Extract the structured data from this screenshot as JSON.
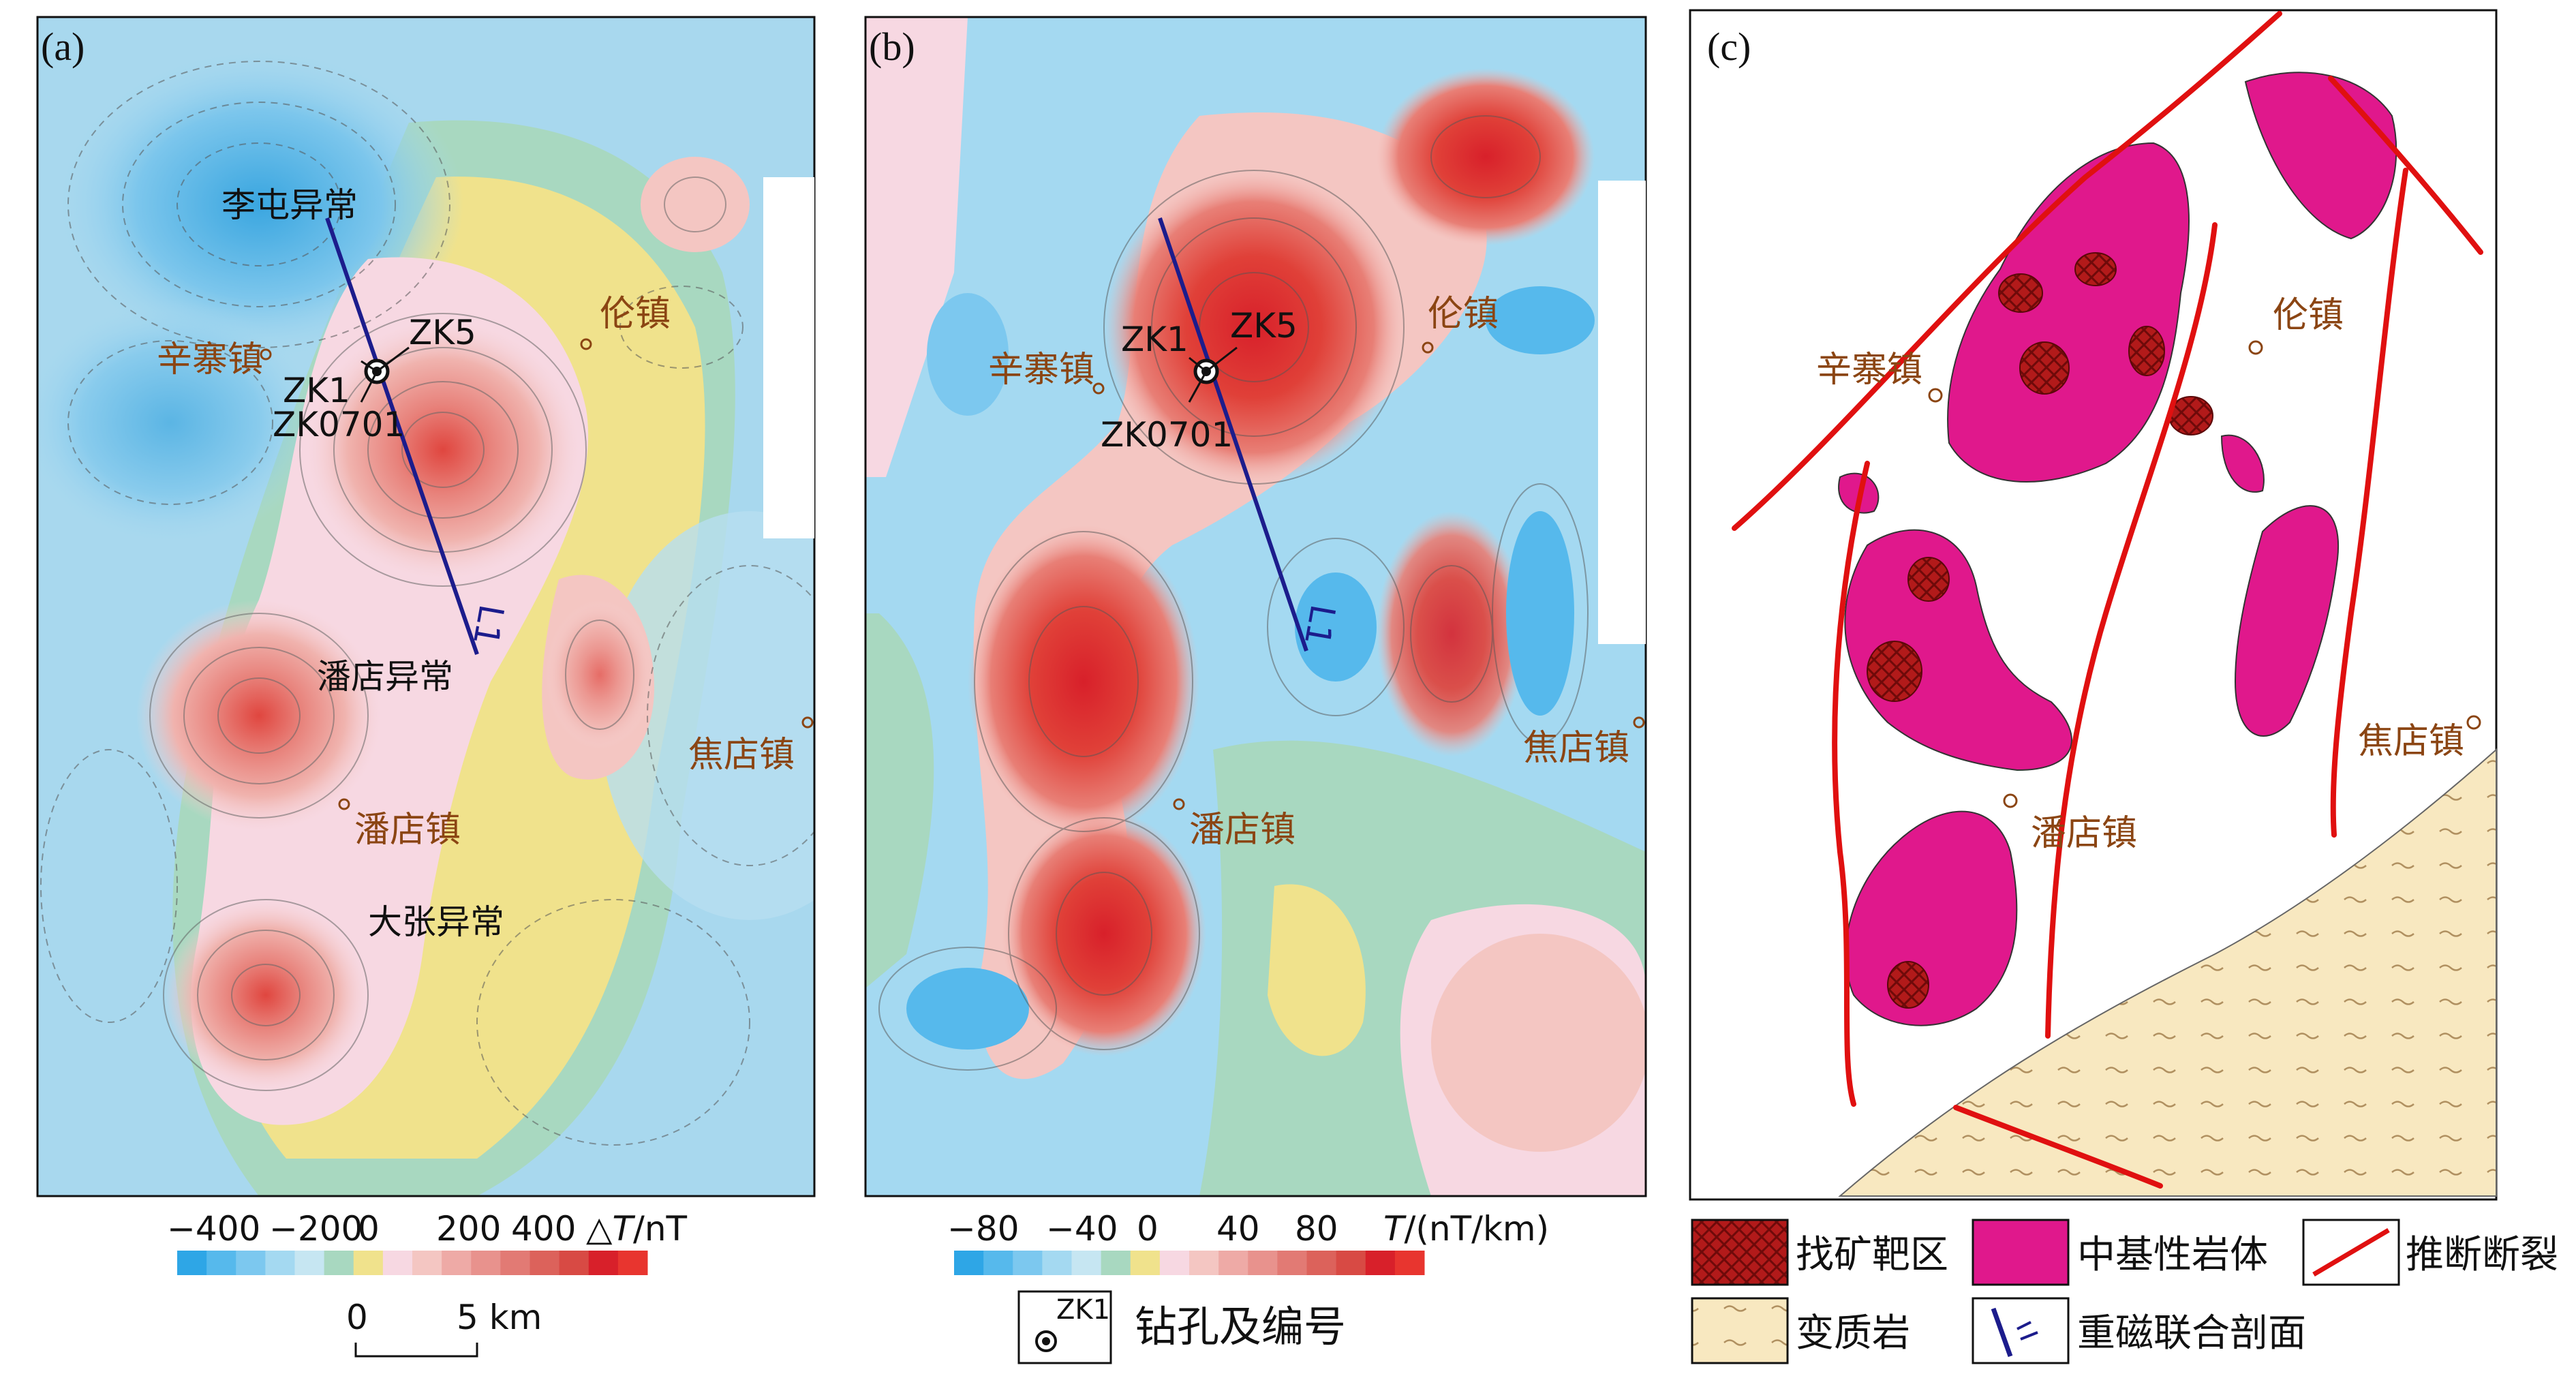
{
  "panels": {
    "a": {
      "label": "(a)",
      "labels": {
        "litun": "李屯异常",
        "xinzhai": "辛寨镇",
        "lunzhen": "伦镇",
        "pandian_anom": "潘店异常",
        "pandian": "潘店镇",
        "dazhang": "大张异常",
        "jiaodian": "焦店镇",
        "zk1": "ZK1",
        "zk5": "ZK5",
        "zk0701": "ZK0701",
        "line": "L1"
      },
      "colorbar": {
        "ticks": [
          "−400",
          "−200",
          "0",
          "200",
          "400"
        ],
        "unit_prefix": "△",
        "unit_var": "T",
        "unit_suffix": "/nT"
      },
      "scalebar": {
        "left": "0",
        "right": "5 km"
      }
    },
    "b": {
      "label": "(b)",
      "labels": {
        "xinzhai": "辛寨镇",
        "lunzhen": "伦镇",
        "pandian": "潘店镇",
        "jiaodian": "焦店镇",
        "zk1": "ZK1",
        "zk5": "ZK5",
        "zk0701": "ZK0701",
        "line": "L1"
      },
      "colorbar": {
        "ticks": [
          "−80",
          "−40",
          "0",
          "40",
          "80"
        ],
        "unit_var": "T",
        "unit_suffix": "/(nT/km)"
      },
      "borehole_legend": {
        "code": "ZK1",
        "text": "钻孔及编号"
      }
    },
    "c": {
      "label": "(c)",
      "labels": {
        "xinzhai": "辛寨镇",
        "lunzhen": "伦镇",
        "pandian": "潘店镇",
        "jiaodian": "焦店镇"
      },
      "legend": [
        {
          "key": "target",
          "text": "找矿靶区"
        },
        {
          "key": "intrusion",
          "text": "中基性岩体"
        },
        {
          "key": "fault",
          "text": "推断断裂"
        },
        {
          "key": "metamorphic",
          "text": "变质岩"
        },
        {
          "key": "profile",
          "text": "重磁联合剖面"
        }
      ]
    }
  },
  "colors": {
    "ramp": [
      "#2ea6e6",
      "#56b9ec",
      "#7cc8ef",
      "#a4d9f1",
      "#c6e6f2",
      "#a8d8c0",
      "#f0e28c",
      "#f7d8e2",
      "#f4c6c2",
      "#eeaaa6",
      "#e8928d",
      "#e27a74",
      "#dc625b",
      "#d84a44",
      "#d8202a",
      "#e8352f"
    ],
    "fault": "#e01010",
    "intrusion": "#e0188c",
    "target": "#b01818",
    "metamorphic": "#f8e8c0",
    "profile": "#1c1c8c"
  }
}
